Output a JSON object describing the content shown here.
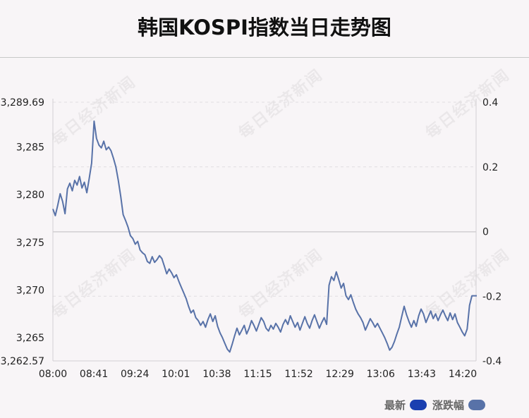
{
  "title": "韩国KOSPI指数当日走势图",
  "watermark_text": "每日经济新闻",
  "legend": {
    "latest": "最新",
    "change": "涨跌幅"
  },
  "colors": {
    "line": "#5872a8",
    "latest_swatch": "#1a3fb0",
    "change_swatch": "#5872a8"
  },
  "chart_data": {
    "type": "line",
    "title": "韩国KOSPI指数当日走势图",
    "x_ticks": [
      "08:00",
      "08:41",
      "09:24",
      "10:01",
      "10:38",
      "11:15",
      "11:52",
      "12:29",
      "13:06",
      "13:43",
      "14:20"
    ],
    "y_left_ticks": [
      "3,289.69",
      "3,285",
      "3,280",
      "3,275",
      "3,270",
      "3,265",
      "3,262.57"
    ],
    "y_left_values": [
      3289.69,
      3285,
      3280,
      3275,
      3270,
      3265,
      3262.57
    ],
    "y_right_ticks": [
      "0.4",
      "0.2",
      "0",
      "-0.2",
      "-0.4"
    ],
    "y_right_values": [
      0.4,
      0.2,
      0,
      -0.2,
      -0.4
    ],
    "ylim_left": [
      3262.57,
      3289.69
    ],
    "ylim_right": [
      -0.4,
      0.4
    ],
    "baseline": 3276.1,
    "series": [
      {
        "name": "最新",
        "values": [
          3278.5,
          3277.8,
          3278.9,
          3280.1,
          3279.3,
          3278.0,
          3280.6,
          3281.2,
          3280.4,
          3281.5,
          3281.0,
          3281.9,
          3280.7,
          3281.3,
          3280.2,
          3281.7,
          3283.3,
          3287.7,
          3285.9,
          3285.2,
          3284.9,
          3285.6,
          3284.7,
          3285.0,
          3284.6,
          3283.8,
          3282.9,
          3281.5,
          3279.8,
          3277.9,
          3277.3,
          3276.6,
          3275.7,
          3275.4,
          3274.8,
          3275.1,
          3274.2,
          3273.9,
          3273.7,
          3273.0,
          3272.8,
          3273.5,
          3272.9,
          3273.2,
          3273.6,
          3273.3,
          3272.5,
          3271.7,
          3272.2,
          3271.8,
          3271.3,
          3271.6,
          3270.9,
          3270.3,
          3269.7,
          3269.1,
          3268.3,
          3267.6,
          3267.9,
          3267.1,
          3266.8,
          3266.3,
          3266.7,
          3266.1,
          3266.9,
          3267.5,
          3266.7,
          3267.3,
          3266.2,
          3265.5,
          3265.0,
          3264.4,
          3263.8,
          3263.5,
          3264.3,
          3265.2,
          3266.0,
          3265.3,
          3265.8,
          3266.3,
          3265.4,
          3266.0,
          3266.8,
          3266.3,
          3265.7,
          3266.4,
          3267.1,
          3266.7,
          3266.0,
          3265.7,
          3266.3,
          3265.9,
          3266.5,
          3266.1,
          3265.6,
          3266.4,
          3266.9,
          3266.4,
          3267.3,
          3266.7,
          3266.1,
          3266.6,
          3265.8,
          3266.5,
          3267.2,
          3266.5,
          3266.0,
          3266.8,
          3267.4,
          3266.7,
          3266.0,
          3266.6,
          3267.1,
          3266.4,
          3270.5,
          3271.4,
          3271.0,
          3271.9,
          3271.1,
          3270.2,
          3270.7,
          3269.4,
          3269.0,
          3269.5,
          3268.7,
          3268.0,
          3267.5,
          3267.1,
          3266.6,
          3265.8,
          3266.4,
          3267.0,
          3266.6,
          3266.1,
          3266.5,
          3266.0,
          3265.5,
          3265.0,
          3264.4,
          3263.7,
          3264.0,
          3264.6,
          3265.4,
          3266.1,
          3267.2,
          3268.3,
          3267.4,
          3266.7,
          3266.1,
          3266.8,
          3266.2,
          3267.3,
          3268.0,
          3267.5,
          3266.6,
          3267.2,
          3267.8,
          3267.0,
          3267.5,
          3266.8,
          3267.4,
          3267.9,
          3267.3,
          3266.8,
          3267.6,
          3266.9,
          3267.5,
          3266.6,
          3266.1,
          3265.6,
          3265.2,
          3265.9,
          3268.4,
          3269.4,
          3269.4,
          3269.4
        ]
      }
    ],
    "grid": "horizontal-dashed",
    "legend_position": "bottom-right"
  }
}
